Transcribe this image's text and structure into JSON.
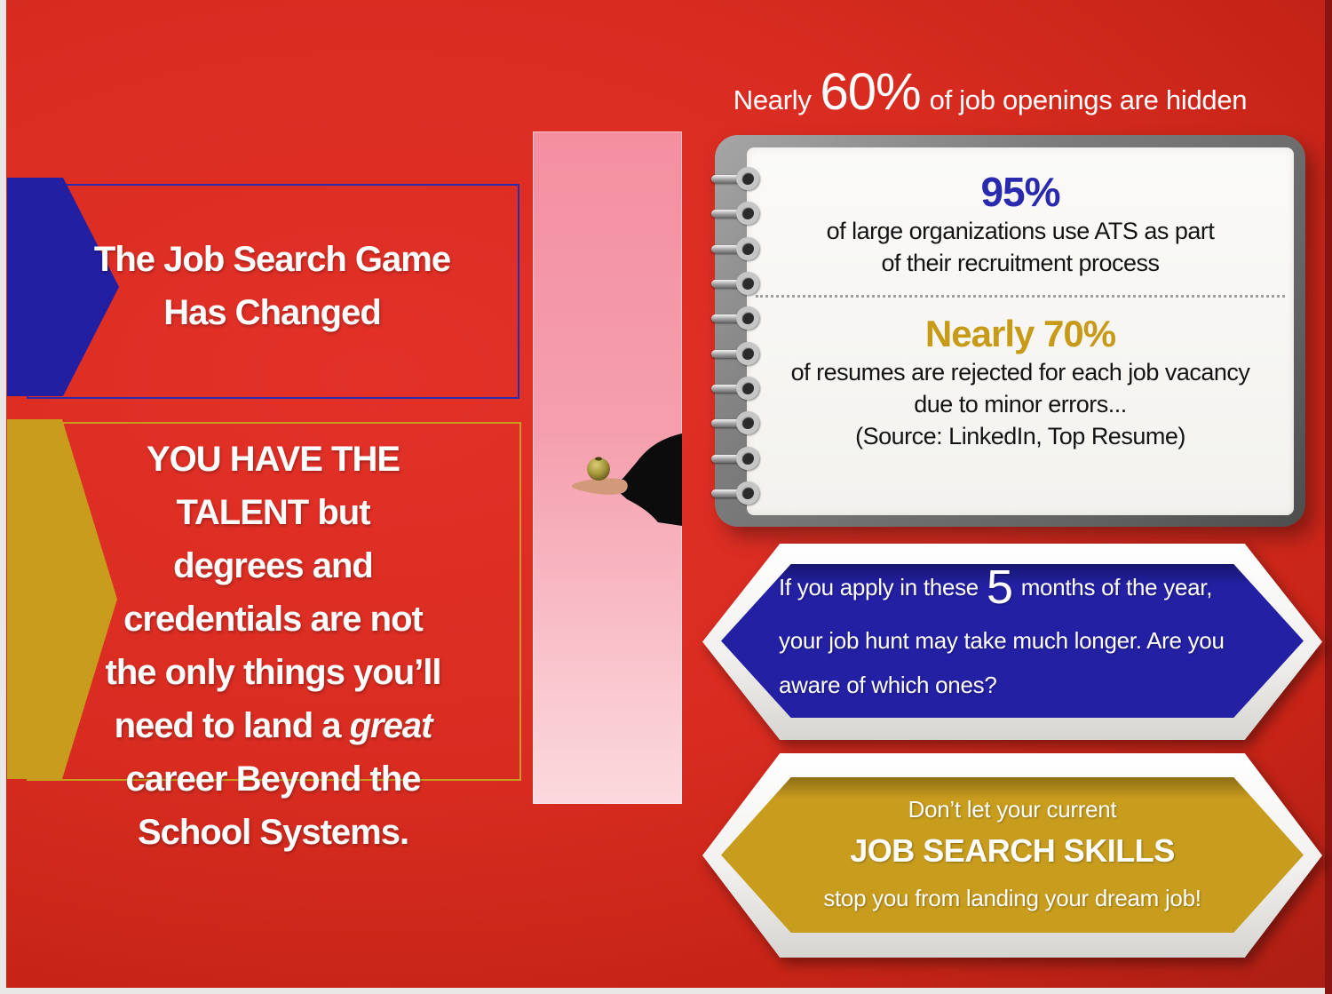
{
  "headline": {
    "prefix": "Nearly",
    "stat": "60%",
    "suffix": "of job openings are hidden"
  },
  "banners": {
    "blue": {
      "line1": "The Job Search Game",
      "line2": "Has Changed"
    },
    "gold": {
      "lines": [
        "YOU HAVE THE",
        "TALENT but",
        "degrees and",
        "credentials are not",
        "the only things you’ll"
      ],
      "great_pre": "need to land a ",
      "great_word": "great",
      "lines_after": [
        "career Beyond the",
        "School Systems."
      ]
    }
  },
  "notebook": {
    "ring_count": 10,
    "stat1": "95%",
    "stat1_desc1": "of large organizations use ATS as part",
    "stat1_desc2": "of their recruitment process",
    "stat2": "Nearly 70%",
    "stat2_desc1": "of resumes are rejected for each job vacancy",
    "stat2_desc2": "due to minor errors...",
    "source": "(Source: LinkedIn, Top Resume)"
  },
  "blue_callout": {
    "pre": "If you apply in these",
    "stat": "5",
    "post": "months of the year,",
    "line2": "your job hunt may take much longer. Are you",
    "line3": "aware of which ones?"
  },
  "gold_callout": {
    "line1": "Don’t let your current",
    "line2": "JOB SEARCH SKILLS",
    "line3": "stop you from landing your dream job!"
  },
  "colors": {
    "background_red": "#d92c21",
    "dark_red": "#9c1b12",
    "blue": "#221fa3",
    "gold": "#c89c1d",
    "pink": "#f595a4",
    "page_white": "#f6f5f2",
    "frame_gray": "#7a7a7a",
    "stat_blue": "#2a2aae",
    "stat_gold": "#c79a17"
  }
}
